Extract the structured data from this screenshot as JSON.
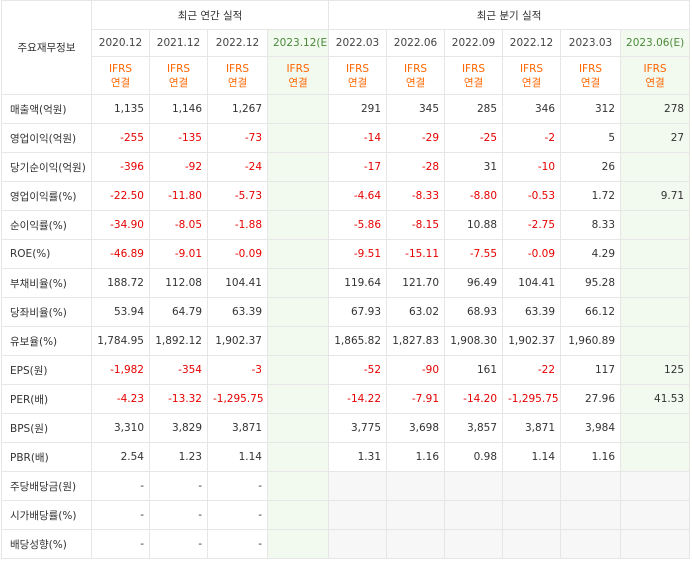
{
  "header": {
    "row_label": "주요재무정보",
    "annual_title": "최근 연간 실적",
    "quarterly_title": "최근 분기 실적"
  },
  "annual_periods": [
    "2020.12",
    "2021.12",
    "2022.12",
    "2023.12(E)"
  ],
  "quarterly_periods": [
    "2022.03",
    "2022.06",
    "2022.09",
    "2022.12",
    "2023.03",
    "2023.06(E)"
  ],
  "accounting": {
    "standard": "IFRS",
    "basis": "연결"
  },
  "colors": {
    "negative": "#e60000",
    "accounting": "#ff6600",
    "estimate_bg": "#f2f9ee",
    "estimate_text": "#4a8a3a"
  },
  "rows": [
    {
      "label": "매출액(억원)",
      "annual": [
        "1,135",
        "1,146",
        "1,267",
        ""
      ],
      "quarterly": [
        "291",
        "345",
        "285",
        "346",
        "312",
        "278"
      ]
    },
    {
      "label": "영업이익(억원)",
      "annual": [
        "-255",
        "-135",
        "-73",
        ""
      ],
      "quarterly": [
        "-14",
        "-29",
        "-25",
        "-2",
        "5",
        "27"
      ]
    },
    {
      "label": "당기순이익(억원)",
      "annual": [
        "-396",
        "-92",
        "-24",
        ""
      ],
      "quarterly": [
        "-17",
        "-28",
        "31",
        "-10",
        "26",
        ""
      ]
    },
    {
      "label": "영업이익률(%)",
      "annual": [
        "-22.50",
        "-11.80",
        "-5.73",
        ""
      ],
      "quarterly": [
        "-4.64",
        "-8.33",
        "-8.80",
        "-0.53",
        "1.72",
        "9.71"
      ]
    },
    {
      "label": "순이익률(%)",
      "annual": [
        "-34.90",
        "-8.05",
        "-1.88",
        ""
      ],
      "quarterly": [
        "-5.86",
        "-8.15",
        "10.88",
        "-2.75",
        "8.33",
        ""
      ]
    },
    {
      "label": "ROE(%)",
      "annual": [
        "-46.89",
        "-9.01",
        "-0.09",
        ""
      ],
      "quarterly": [
        "-9.51",
        "-15.11",
        "-7.55",
        "-0.09",
        "4.29",
        ""
      ]
    },
    {
      "label": "부채비율(%)",
      "annual": [
        "188.72",
        "112.08",
        "104.41",
        ""
      ],
      "quarterly": [
        "119.64",
        "121.70",
        "96.49",
        "104.41",
        "95.28",
        ""
      ]
    },
    {
      "label": "당좌비율(%)",
      "annual": [
        "53.94",
        "64.79",
        "63.39",
        ""
      ],
      "quarterly": [
        "67.93",
        "63.02",
        "68.93",
        "63.39",
        "66.12",
        ""
      ]
    },
    {
      "label": "유보율(%)",
      "annual": [
        "1,784.95",
        "1,892.12",
        "1,902.37",
        ""
      ],
      "quarterly": [
        "1,865.82",
        "1,827.83",
        "1,908.30",
        "1,902.37",
        "1,960.89",
        ""
      ]
    },
    {
      "label": "EPS(원)",
      "annual": [
        "-1,982",
        "-354",
        "-3",
        ""
      ],
      "quarterly": [
        "-52",
        "-90",
        "161",
        "-22",
        "117",
        "125"
      ]
    },
    {
      "label": "PER(배)",
      "annual": [
        "-4.23",
        "-13.32",
        "-1,295.75",
        ""
      ],
      "quarterly": [
        "-14.22",
        "-7.91",
        "-14.20",
        "-1,295.75",
        "27.96",
        "41.53"
      ]
    },
    {
      "label": "BPS(원)",
      "annual": [
        "3,310",
        "3,829",
        "3,871",
        ""
      ],
      "quarterly": [
        "3,775",
        "3,698",
        "3,857",
        "3,871",
        "3,984",
        ""
      ]
    },
    {
      "label": "PBR(배)",
      "annual": [
        "2.54",
        "1.23",
        "1.14",
        ""
      ],
      "quarterly": [
        "1.31",
        "1.16",
        "0.98",
        "1.14",
        "1.16",
        ""
      ]
    },
    {
      "label": "주당배당금(원)",
      "annual": [
        "-",
        "-",
        "-",
        ""
      ],
      "quarterly": [
        "",
        "",
        "",
        "",
        "",
        ""
      ]
    },
    {
      "label": "시가배당률(%)",
      "annual": [
        "-",
        "-",
        "-",
        ""
      ],
      "quarterly": [
        "",
        "",
        "",
        "",
        "",
        ""
      ]
    },
    {
      "label": "배당성향(%)",
      "annual": [
        "-",
        "-",
        "-",
        ""
      ],
      "quarterly": [
        "",
        "",
        "",
        "",
        "",
        ""
      ]
    }
  ]
}
